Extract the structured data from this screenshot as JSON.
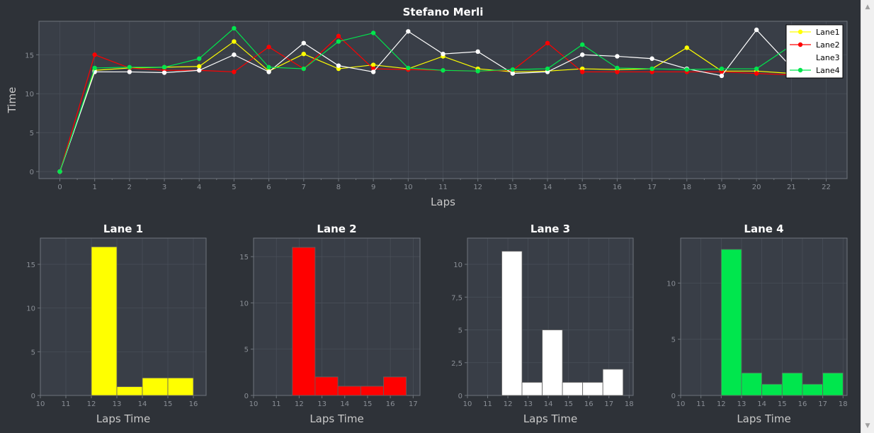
{
  "colors": {
    "background": "#2e3238",
    "plot_background": "#393e47",
    "grid": "#4a505a",
    "axis": "#6e747c",
    "Lane1": "#ffff00",
    "Lane2": "#ff0000",
    "Lane3": "#ffffff",
    "Lane4": "#00e64d"
  },
  "chart_data": [
    {
      "id": "main",
      "type": "line",
      "title": "Stefano Merli",
      "xlabel": "Laps",
      "ylabel": "Time",
      "xlim": [
        -0.6,
        22.6
      ],
      "ylim": [
        -0.9,
        19.3
      ],
      "xticks": [
        0,
        1,
        2,
        3,
        4,
        5,
        6,
        7,
        8,
        9,
        10,
        11,
        12,
        13,
        14,
        15,
        16,
        17,
        18,
        19,
        20,
        21,
        22
      ],
      "yticks": [
        0,
        5,
        10,
        15
      ],
      "grid": true,
      "legend": "top-right",
      "series": [
        {
          "name": "Lane1",
          "color": "#ffff00",
          "x": [
            0,
            1,
            2,
            3,
            4,
            5,
            6,
            7,
            8,
            9,
            10,
            11,
            12,
            13,
            14,
            15,
            16,
            17,
            18,
            19,
            20,
            21,
            22
          ],
          "y": [
            0,
            13.0,
            13.3,
            13.4,
            13.5,
            16.7,
            12.9,
            15.1,
            13.2,
            13.7,
            13.2,
            14.8,
            13.2,
            12.8,
            12.9,
            13.2,
            13.1,
            13.2,
            15.9,
            12.9,
            12.9,
            12.6,
            12.8
          ]
        },
        {
          "name": "Lane2",
          "color": "#ff0000",
          "x": [
            0,
            1,
            2,
            3,
            4,
            5,
            6,
            7,
            8,
            9,
            10,
            11,
            12,
            13,
            14,
            15,
            16,
            17,
            18,
            19,
            20,
            21,
            22
          ],
          "y": [
            0,
            15.0,
            13.3,
            13.0,
            13.0,
            12.8,
            16.0,
            13.2,
            17.4,
            13.2,
            13.1,
            13.0,
            12.9,
            13.0,
            16.5,
            12.8,
            12.8,
            12.8,
            12.8,
            12.8,
            12.6,
            12.4,
            12.9
          ]
        },
        {
          "name": "Lane3",
          "color": "#ffffff",
          "x": [
            0,
            1,
            2,
            3,
            4,
            5,
            6,
            7,
            8,
            9,
            10,
            11,
            12,
            13,
            14,
            15,
            16,
            17,
            18,
            19,
            20,
            21
          ],
          "y": [
            0,
            12.8,
            12.8,
            12.7,
            13.0,
            15.0,
            12.8,
            16.5,
            13.6,
            12.8,
            18.0,
            15.1,
            15.4,
            12.6,
            12.8,
            15.0,
            14.8,
            14.5,
            13.2,
            12.3,
            18.2,
            13.4
          ]
        },
        {
          "name": "Lane4",
          "color": "#00e64d",
          "x": [
            0,
            1,
            2,
            3,
            4,
            5,
            6,
            7,
            8,
            9,
            10,
            11,
            12,
            13,
            14,
            15,
            16,
            17,
            18,
            19,
            20,
            21
          ],
          "y": [
            0,
            13.3,
            13.4,
            13.4,
            14.5,
            18.4,
            13.4,
            13.2,
            16.7,
            17.8,
            13.3,
            13.0,
            12.9,
            13.1,
            13.2,
            16.3,
            13.3,
            13.2,
            13.1,
            13.2,
            13.2,
            16.2
          ]
        }
      ]
    },
    {
      "id": "lane1",
      "type": "bar",
      "title": "Lane 1",
      "xlabel": "Laps Time",
      "ylabel": "",
      "color": "#ffff00",
      "xlim": [
        10,
        16.5
      ],
      "ylim": [
        0,
        18
      ],
      "xticks": [
        10,
        11,
        12,
        13,
        14,
        15,
        16
      ],
      "yticks": [
        0,
        5,
        10,
        15
      ],
      "grid": true,
      "bins": [
        {
          "start": 12.0,
          "end": 13.0,
          "count": 17
        },
        {
          "start": 13.0,
          "end": 14.0,
          "count": 1
        },
        {
          "start": 14.0,
          "end": 15.0,
          "count": 2
        },
        {
          "start": 15.0,
          "end": 16.0,
          "count": 2
        }
      ]
    },
    {
      "id": "lane2",
      "type": "bar",
      "title": "Lane 2",
      "xlabel": "Laps Time",
      "ylabel": "",
      "color": "#ff0000",
      "xlim": [
        10,
        17.3
      ],
      "ylim": [
        0,
        17
      ],
      "xticks": [
        10,
        11,
        12,
        13,
        14,
        15,
        16,
        17
      ],
      "yticks": [
        0,
        5,
        10,
        15
      ],
      "grid": true,
      "bins": [
        {
          "start": 11.7,
          "end": 12.7,
          "count": 16
        },
        {
          "start": 12.7,
          "end": 13.7,
          "count": 2
        },
        {
          "start": 13.7,
          "end": 14.7,
          "count": 1
        },
        {
          "start": 14.7,
          "end": 15.7,
          "count": 1
        },
        {
          "start": 15.7,
          "end": 16.7,
          "count": 2
        }
      ]
    },
    {
      "id": "lane3",
      "type": "bar",
      "title": "Lane 3",
      "xlabel": "Laps Time",
      "ylabel": "",
      "color": "#ffffff",
      "xlim": [
        10,
        18.2
      ],
      "ylim": [
        0,
        12
      ],
      "xticks": [
        10,
        11,
        12,
        13,
        14,
        15,
        16,
        17,
        18
      ],
      "yticks": [
        0,
        2.5,
        5,
        7.5,
        10
      ],
      "ytick_labels": [
        "0",
        "2,5",
        "5",
        "7,5",
        "10"
      ],
      "grid": true,
      "bins": [
        {
          "start": 11.7,
          "end": 12.7,
          "count": 11
        },
        {
          "start": 12.7,
          "end": 13.7,
          "count": 1
        },
        {
          "start": 13.7,
          "end": 14.7,
          "count": 5
        },
        {
          "start": 14.7,
          "end": 15.7,
          "count": 1
        },
        {
          "start": 15.7,
          "end": 16.7,
          "count": 1
        },
        {
          "start": 16.7,
          "end": 17.7,
          "count": 2
        }
      ]
    },
    {
      "id": "lane4",
      "type": "bar",
      "title": "Lane 4",
      "xlabel": "Laps Time",
      "ylabel": "",
      "color": "#00e64d",
      "xlim": [
        10,
        18.2
      ],
      "ylim": [
        0,
        14
      ],
      "xticks": [
        10,
        11,
        12,
        13,
        14,
        15,
        16,
        17,
        18
      ],
      "yticks": [
        0,
        5,
        10
      ],
      "grid": true,
      "bins": [
        {
          "start": 12.0,
          "end": 13.0,
          "count": 13
        },
        {
          "start": 13.0,
          "end": 14.0,
          "count": 2
        },
        {
          "start": 14.0,
          "end": 15.0,
          "count": 1
        },
        {
          "start": 15.0,
          "end": 16.0,
          "count": 2
        },
        {
          "start": 16.0,
          "end": 17.0,
          "count": 1
        },
        {
          "start": 17.0,
          "end": 18.0,
          "count": 2
        }
      ]
    }
  ],
  "scrollbar": {
    "up_icon": "triangle-up",
    "down_icon": "triangle-down"
  }
}
